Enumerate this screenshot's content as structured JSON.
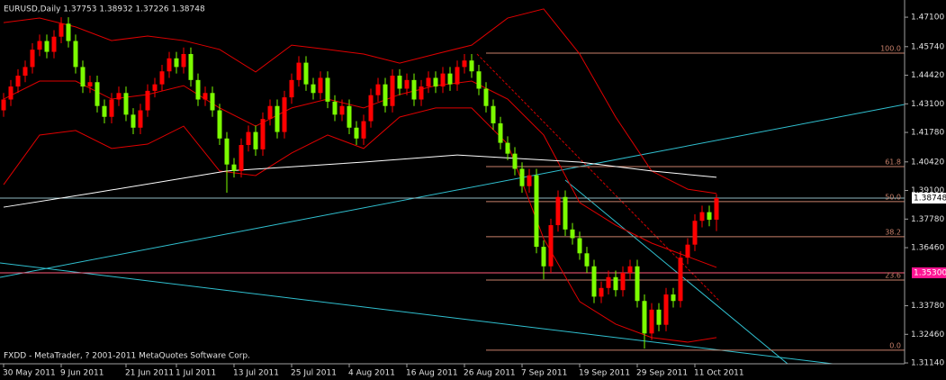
{
  "chart_data": {
    "type": "candlestick",
    "title": "EURUSD,Daily  1.37753 1.38932 1.37226 1.38748",
    "footer": "FXDD - MetaTrader, ? 2001-2011 MetaQuotes Software Corp.",
    "categories": [
      "30 May 2011",
      null,
      null,
      null,
      null,
      null,
      null,
      null,
      "9 Jun 2011",
      null,
      null,
      null,
      null,
      null,
      null,
      null,
      null,
      "21 Jun 2011",
      null,
      null,
      null,
      null,
      null,
      null,
      "1 Jul 2011",
      null,
      null,
      null,
      null,
      null,
      null,
      null,
      "13 Jul 2011",
      null,
      null,
      null,
      null,
      null,
      null,
      null,
      "25 Jul 2011",
      null,
      null,
      null,
      null,
      null,
      null,
      null,
      "4 Aug 2011",
      null,
      null,
      null,
      null,
      null,
      null,
      null,
      "16 Aug 2011",
      null,
      null,
      null,
      null,
      null,
      null,
      null,
      "26 Aug 2011",
      null,
      null,
      null,
      null,
      null,
      null,
      null,
      "7 Sep 2011",
      null,
      null,
      null,
      null,
      null,
      null,
      null,
      "19 Sep 2011",
      null,
      null,
      null,
      null,
      null,
      null,
      null,
      "29 Sep 2011",
      null,
      null,
      null,
      null,
      null,
      null,
      null,
      "11 Oct 2011",
      null,
      null,
      null
    ],
    "open": [
      1.428,
      1.433,
      1.439,
      1.444,
      1.448,
      1.456,
      1.46,
      1.455,
      1.462,
      1.468,
      1.46,
      1.448,
      1.439,
      1.441,
      1.43,
      1.425,
      1.433,
      1.436,
      1.426,
      1.42,
      1.428,
      1.437,
      1.44,
      1.446,
      1.452,
      1.448,
      1.454,
      1.442,
      1.433,
      1.436,
      1.428,
      1.415,
      1.403,
      1.4,
      1.412,
      1.418,
      1.41,
      1.424,
      1.43,
      1.418,
      1.434,
      1.442,
      1.45,
      1.44,
      1.436,
      1.443,
      1.432,
      1.426,
      1.43,
      1.42,
      1.415,
      1.423,
      1.435,
      1.44,
      1.43,
      1.444,
      1.438,
      1.442,
      1.433,
      1.439,
      1.443,
      1.439,
      1.445,
      1.44,
      1.448,
      1.451,
      1.446,
      1.438,
      1.43,
      1.422,
      1.413,
      1.408,
      1.401,
      1.393,
      1.398,
      1.365,
      1.356,
      1.375,
      1.388,
      1.373,
      1.369,
      1.362,
      1.356,
      1.342,
      1.346,
      1.351,
      1.345,
      1.353,
      1.356,
      1.34,
      1.325,
      1.336,
      1.329,
      1.343,
      1.34,
      1.36,
      1.366,
      1.377,
      1.381,
      1.37753
    ],
    "high": [
      1.436,
      1.442,
      1.447,
      1.451,
      1.459,
      1.463,
      1.463,
      1.465,
      1.471,
      1.471,
      1.463,
      1.451,
      1.444,
      1.444,
      1.433,
      1.436,
      1.439,
      1.439,
      1.429,
      1.431,
      1.44,
      1.443,
      1.449,
      1.455,
      1.455,
      1.457,
      1.457,
      1.445,
      1.439,
      1.439,
      1.431,
      1.418,
      1.406,
      1.415,
      1.421,
      1.421,
      1.427,
      1.433,
      1.433,
      1.437,
      1.445,
      1.453,
      1.453,
      1.443,
      1.446,
      1.446,
      1.435,
      1.433,
      1.433,
      1.423,
      1.426,
      1.438,
      1.443,
      1.443,
      1.447,
      1.447,
      1.445,
      1.445,
      1.442,
      1.446,
      1.446,
      1.448,
      1.448,
      1.451,
      1.454,
      1.454,
      1.449,
      1.441,
      1.433,
      1.425,
      1.416,
      1.411,
      1.404,
      1.401,
      1.401,
      1.368,
      1.378,
      1.391,
      1.391,
      1.376,
      1.372,
      1.365,
      1.359,
      1.349,
      1.354,
      1.354,
      1.356,
      1.359,
      1.359,
      1.343,
      1.339,
      1.339,
      1.346,
      1.346,
      1.363,
      1.369,
      1.38,
      1.384,
      1.384,
      1.38932
    ],
    "low": [
      1.425,
      1.43,
      1.436,
      1.441,
      1.445,
      1.453,
      1.452,
      1.452,
      1.459,
      1.457,
      1.445,
      1.436,
      1.436,
      1.427,
      1.422,
      1.422,
      1.43,
      1.423,
      1.417,
      1.417,
      1.425,
      1.434,
      1.437,
      1.443,
      1.445,
      1.445,
      1.439,
      1.43,
      1.43,
      1.425,
      1.412,
      1.39,
      1.397,
      1.397,
      1.409,
      1.407,
      1.407,
      1.421,
      1.415,
      1.415,
      1.431,
      1.439,
      1.437,
      1.433,
      1.433,
      1.429,
      1.423,
      1.423,
      1.417,
      1.412,
      1.412,
      1.42,
      1.432,
      1.427,
      1.427,
      1.435,
      1.435,
      1.43,
      1.43,
      1.436,
      1.436,
      1.436,
      1.437,
      1.437,
      1.445,
      1.443,
      1.435,
      1.427,
      1.419,
      1.41,
      1.405,
      1.398,
      1.39,
      1.39,
      1.362,
      1.35,
      1.353,
      1.372,
      1.37,
      1.366,
      1.359,
      1.353,
      1.339,
      1.339,
      1.343,
      1.342,
      1.342,
      1.35,
      1.337,
      1.318,
      1.322,
      1.326,
      1.326,
      1.337,
      1.337,
      1.357,
      1.363,
      1.374,
      1.3745,
      1.37226
    ],
    "close": [
      1.433,
      1.439,
      1.444,
      1.448,
      1.456,
      1.46,
      1.455,
      1.462,
      1.468,
      1.46,
      1.448,
      1.439,
      1.441,
      1.43,
      1.425,
      1.433,
      1.436,
      1.426,
      1.42,
      1.428,
      1.437,
      1.44,
      1.446,
      1.452,
      1.448,
      1.454,
      1.442,
      1.433,
      1.436,
      1.428,
      1.415,
      1.403,
      1.4,
      1.412,
      1.418,
      1.41,
      1.424,
      1.43,
      1.418,
      1.434,
      1.442,
      1.45,
      1.44,
      1.436,
      1.443,
      1.432,
      1.426,
      1.43,
      1.42,
      1.415,
      1.423,
      1.435,
      1.44,
      1.43,
      1.444,
      1.438,
      1.442,
      1.433,
      1.439,
      1.443,
      1.439,
      1.445,
      1.44,
      1.448,
      1.451,
      1.446,
      1.438,
      1.43,
      1.422,
      1.413,
      1.408,
      1.401,
      1.393,
      1.398,
      1.365,
      1.356,
      1.375,
      1.388,
      1.373,
      1.369,
      1.362,
      1.356,
      1.342,
      1.346,
      1.351,
      1.345,
      1.353,
      1.356,
      1.34,
      1.325,
      1.336,
      1.329,
      1.343,
      1.34,
      1.36,
      1.366,
      1.377,
      1.381,
      1.3775,
      1.38748
    ],
    "up_color": "#ff0000",
    "down_color": "#7cfc00",
    "bands": {
      "color": "#e00000",
      "x": [
        0,
        5,
        10,
        15,
        20,
        25,
        30,
        35,
        40,
        45,
        50,
        55,
        60,
        65,
        70,
        75,
        80,
        85,
        90,
        95,
        99
      ],
      "upper": [
        1.4685,
        1.4706,
        1.4665,
        1.4602,
        1.4623,
        1.4602,
        1.4561,
        1.4457,
        1.4581,
        1.4561,
        1.454,
        1.4498,
        1.454,
        1.4581,
        1.4706,
        1.4748,
        1.454,
        1.4249,
        1.4,
        1.3916,
        1.3896
      ],
      "middle": [
        1.4332,
        1.4415,
        1.4415,
        1.4332,
        1.4353,
        1.4394,
        1.4291,
        1.4207,
        1.4291,
        1.4332,
        1.4291,
        1.4353,
        1.4394,
        1.4415,
        1.4332,
        1.4166,
        1.3854,
        1.375,
        1.3667,
        1.3605,
        1.3555
      ],
      "lower": [
        1.3937,
        1.4166,
        1.4187,
        1.4104,
        1.4124,
        1.4207,
        1.4,
        1.3979,
        1.4083,
        1.4166,
        1.4104,
        1.4249,
        1.4291,
        1.4291,
        1.4124,
        1.3688,
        1.3397,
        1.3293,
        1.3231,
        1.321,
        1.3231
      ]
    },
    "ma": {
      "color": "#ffffff",
      "x": [
        0,
        12,
        31,
        50,
        63,
        80,
        90,
        99
      ],
      "values": [
        1.3833,
        1.3896,
        1.4,
        1.4041,
        1.4074,
        1.4041,
        1.4,
        1.3971
      ]
    },
    "fib": {
      "color": "#c8806a",
      "high": 1.4544,
      "low": 1.3173,
      "levels": [
        {
          "value": 100,
          "label": "100.0"
        },
        61.8,
        {
          "value": 50,
          "label": "50.0"
        },
        38.2,
        23.6,
        {
          "value": 0,
          "label": "0.0"
        }
      ]
    },
    "price_lines": [
      {
        "value": 1.38748,
        "color": "#8fb8c0",
        "box": "#ffffff",
        "text_color": "#000000"
      },
      {
        "value": 1.353,
        "label": "1.35300",
        "color": "#ff5a7a",
        "box": "#ff1493",
        "text_color": "#ffffff"
      }
    ],
    "ylim": [
      1.311,
      1.4781
    ],
    "yticks": [
      {
        "value": 1.471,
        "label": "1.47100"
      },
      {
        "value": 1.4574,
        "label": "1.45740"
      },
      {
        "value": 1.4442,
        "label": "1.44420"
      },
      {
        "value": 1.431,
        "label": "1.43100"
      },
      {
        "value": 1.4178,
        "label": "1.41780"
      },
      {
        "value": 1.4042,
        "label": "1.40420"
      },
      {
        "value": 1.391,
        "label": "1.39100"
      },
      {
        "value": 1.3778,
        "label": "1.37780"
      },
      {
        "value": 1.3646,
        "label": "1.36460"
      },
      {
        "value": 1.3378,
        "label": "1.33780"
      },
      {
        "value": 1.3246,
        "label": "1.32460"
      },
      {
        "value": 1.3114,
        "label": "1.31140"
      }
    ]
  }
}
